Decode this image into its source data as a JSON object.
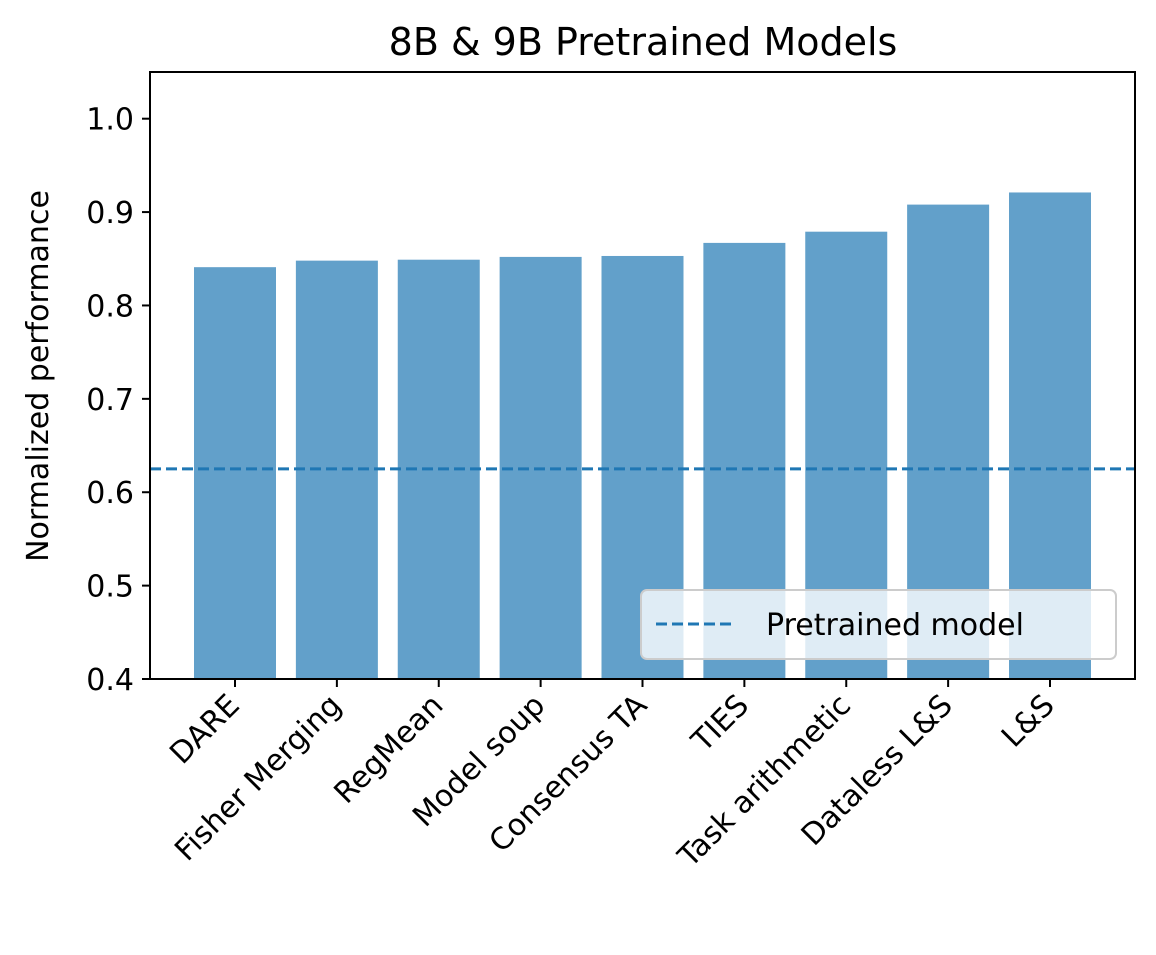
{
  "chart_data": {
    "type": "bar",
    "title": "8B & 9B Pretrained Models",
    "xlabel": "",
    "ylabel": "Normalized performance",
    "categories": [
      "DARE",
      "Fisher Merging",
      "RegMean",
      "Model soup",
      "Consensus TA",
      "TIES",
      "Task arithmetic",
      "Dataless L&S",
      "L&S"
    ],
    "values": [
      0.841,
      0.848,
      0.849,
      0.852,
      0.853,
      0.867,
      0.879,
      0.908,
      0.921
    ],
    "ylim": [
      0.4,
      1.05
    ],
    "yticks": [
      "0.4",
      "0.5",
      "0.6",
      "0.7",
      "0.8",
      "0.9",
      "1.0"
    ],
    "bar_color": "#62a0ca",
    "reference_line": {
      "name": "Pretrained model",
      "value": 0.625,
      "style": "dashed",
      "color": "#1f77b4"
    },
    "legend": {
      "placement": "lower-right",
      "entries": [
        "Pretrained model"
      ]
    },
    "grid": false
  }
}
